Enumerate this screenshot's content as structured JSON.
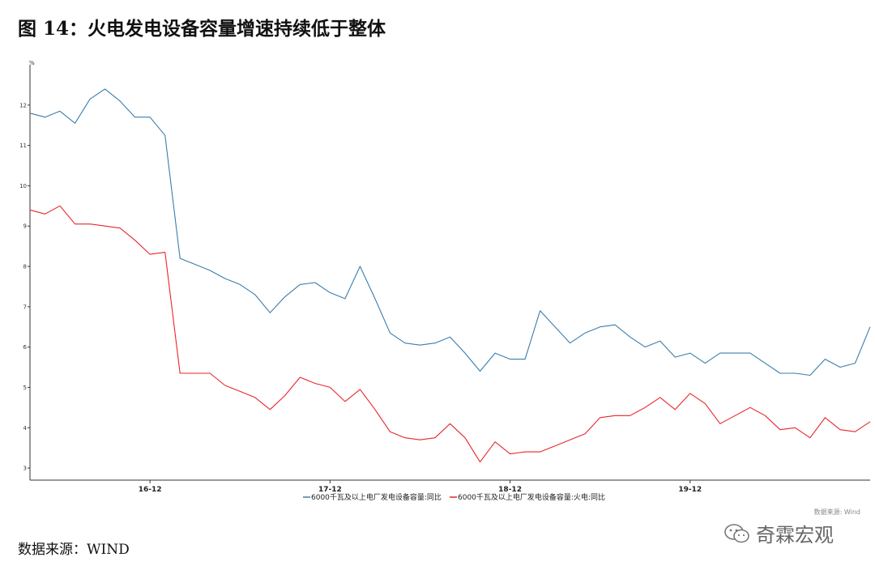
{
  "title": "图 14：火电发电设备容量增速持续低于整体",
  "source": "数据来源：WIND",
  "wind_credit": "数据来源: Wind",
  "watermark_text": "奇霖宏观",
  "chart_data": {
    "type": "line",
    "ylabel": "%",
    "ylim": [
      2.7,
      13
    ],
    "yticks": [
      3,
      4,
      5,
      6,
      7,
      8,
      9,
      10,
      11,
      12
    ],
    "x_ticks": [
      "16-12",
      "17-12",
      "18-12",
      "19-12"
    ],
    "x_tick_index": [
      8,
      20,
      32,
      44
    ],
    "n_points": 57,
    "grid": false,
    "legend_position": "bottom",
    "series": [
      {
        "name": "6000千瓦及以上电厂发电设备容量:同比",
        "color": "#3a7dab",
        "values": [
          11.8,
          11.7,
          11.85,
          11.55,
          12.15,
          12.4,
          12.1,
          11.7,
          11.7,
          11.25,
          8.2,
          8.05,
          7.9,
          7.7,
          7.55,
          7.3,
          6.85,
          7.25,
          7.55,
          7.6,
          7.35,
          7.2,
          8.0,
          7.2,
          6.35,
          6.1,
          6.05,
          6.1,
          6.25,
          5.85,
          5.4,
          5.85,
          5.7,
          5.7,
          6.9,
          6.5,
          6.1,
          6.35,
          6.5,
          6.55,
          6.25,
          6.0,
          6.15,
          5.75,
          5.85,
          5.6,
          5.85,
          5.85,
          5.85,
          5.6,
          5.35,
          5.35,
          5.3,
          5.7,
          5.5,
          5.6,
          6.5
        ]
      },
      {
        "name": "6000千瓦及以上电厂发电设备容量:火电:同比",
        "color": "#e8262a",
        "values": [
          9.4,
          9.3,
          9.5,
          9.05,
          9.05,
          9.0,
          8.95,
          8.65,
          8.3,
          8.35,
          5.35,
          5.35,
          5.35,
          5.05,
          4.9,
          4.75,
          4.45,
          4.8,
          5.25,
          5.1,
          5.0,
          4.65,
          4.95,
          4.45,
          3.9,
          3.75,
          3.7,
          3.75,
          4.1,
          3.75,
          3.15,
          3.65,
          3.35,
          3.4,
          3.4,
          3.55,
          3.7,
          3.85,
          4.25,
          4.3,
          4.3,
          4.5,
          4.75,
          4.45,
          4.85,
          4.6,
          4.1,
          4.3,
          4.5,
          4.3,
          3.95,
          4.0,
          3.75,
          4.25,
          3.95,
          3.9,
          4.15
        ]
      }
    ]
  }
}
